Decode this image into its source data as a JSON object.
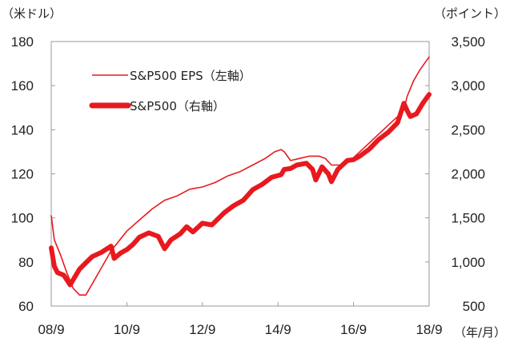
{
  "chart_data": {
    "type": "line",
    "title": "",
    "left_axis": {
      "unit_label": "（米ドル）",
      "ylim": [
        60,
        180
      ],
      "ticks": [
        60,
        80,
        100,
        120,
        140,
        160,
        180
      ],
      "tick_labels": [
        "60",
        "80",
        "100",
        "120",
        "140",
        "160",
        "180"
      ]
    },
    "right_axis": {
      "unit_label": "（ポイント）",
      "ylim": [
        500,
        3500
      ],
      "ticks": [
        500,
        1000,
        1500,
        2000,
        2500,
        3000,
        3500
      ],
      "tick_labels": [
        "500",
        "1,000",
        "1,500",
        "2,000",
        "2,500",
        "3,000",
        "3,500"
      ]
    },
    "x_axis": {
      "unit_label": "（年/月）",
      "xlim": [
        2008.667,
        2018.667
      ],
      "ticks": [
        2008.667,
        2010.667,
        2012.667,
        2014.667,
        2016.667,
        2018.667
      ],
      "tick_labels": [
        "08/9",
        "10/9",
        "12/9",
        "14/9",
        "16/9",
        "18/9"
      ]
    },
    "grid": false,
    "legend_position": "top-left",
    "series": [
      {
        "name": "S&P500 EPS（左軸）",
        "axis": "left",
        "color": "#e8191e",
        "line_style": "thin",
        "x": [
          2008.667,
          2008.75,
          2008.917,
          2009.083,
          2009.25,
          2009.417,
          2009.583,
          2009.75,
          2009.917,
          2010.25,
          2010.667,
          2011.0,
          2011.333,
          2011.667,
          2012.0,
          2012.333,
          2012.667,
          2013.0,
          2013.333,
          2013.667,
          2014.0,
          2014.333,
          2014.583,
          2014.75,
          2014.833,
          2015.0,
          2015.25,
          2015.5,
          2015.75,
          2015.917,
          2016.083,
          2016.333,
          2016.583,
          2016.833,
          2017.083,
          2017.333,
          2017.583,
          2017.833,
          2018.0,
          2018.083,
          2018.25,
          2018.417,
          2018.583,
          2018.667
        ],
        "values": [
          101,
          90,
          83,
          75,
          68,
          65,
          65,
          70,
          75,
          85,
          94,
          99,
          104,
          108,
          110,
          113,
          114,
          116,
          119,
          121,
          124,
          127,
          130,
          131,
          130,
          126,
          127,
          128,
          128,
          127,
          124,
          124,
          126,
          130,
          134,
          138,
          142,
          146,
          149,
          155,
          162,
          167,
          171,
          173
        ]
      },
      {
        "name": "S&P500（右軸）",
        "axis": "right",
        "color": "#e8191e",
        "line_style": "thick",
        "x": [
          2008.667,
          2008.75,
          2008.833,
          2009.0,
          2009.167,
          2009.25,
          2009.417,
          2009.583,
          2009.75,
          2010.0,
          2010.25,
          2010.333,
          2010.5,
          2010.667,
          2010.833,
          2011.0,
          2011.25,
          2011.5,
          2011.667,
          2011.833,
          2012.083,
          2012.25,
          2012.417,
          2012.667,
          2012.917,
          2013.25,
          2013.5,
          2013.75,
          2014.0,
          2014.25,
          2014.5,
          2014.75,
          2014.833,
          2015.0,
          2015.167,
          2015.417,
          2015.583,
          2015.667,
          2015.833,
          2016.0,
          2016.083,
          2016.25,
          2016.5,
          2016.667,
          2016.833,
          2017.083,
          2017.333,
          2017.583,
          2017.833,
          2018.0,
          2018.083,
          2018.167,
          2018.333,
          2018.5,
          2018.667
        ],
        "values": [
          1160,
          950,
          880,
          850,
          740,
          800,
          920,
          990,
          1060,
          1110,
          1180,
          1040,
          1100,
          1140,
          1200,
          1280,
          1330,
          1290,
          1150,
          1250,
          1320,
          1400,
          1340,
          1440,
          1420,
          1560,
          1640,
          1700,
          1820,
          1880,
          1960,
          1990,
          2050,
          2060,
          2100,
          2120,
          2050,
          1930,
          2080,
          2000,
          1910,
          2050,
          2150,
          2160,
          2200,
          2280,
          2390,
          2470,
          2580,
          2800,
          2720,
          2650,
          2680,
          2800,
          2900
        ]
      }
    ]
  },
  "legend": {
    "items": [
      {
        "label": "S&P500 EPS（左軸）",
        "color": "#e8191e",
        "style": "thin"
      },
      {
        "label": "S&P500（右軸）",
        "color": "#e8191e",
        "style": "thick"
      }
    ]
  }
}
